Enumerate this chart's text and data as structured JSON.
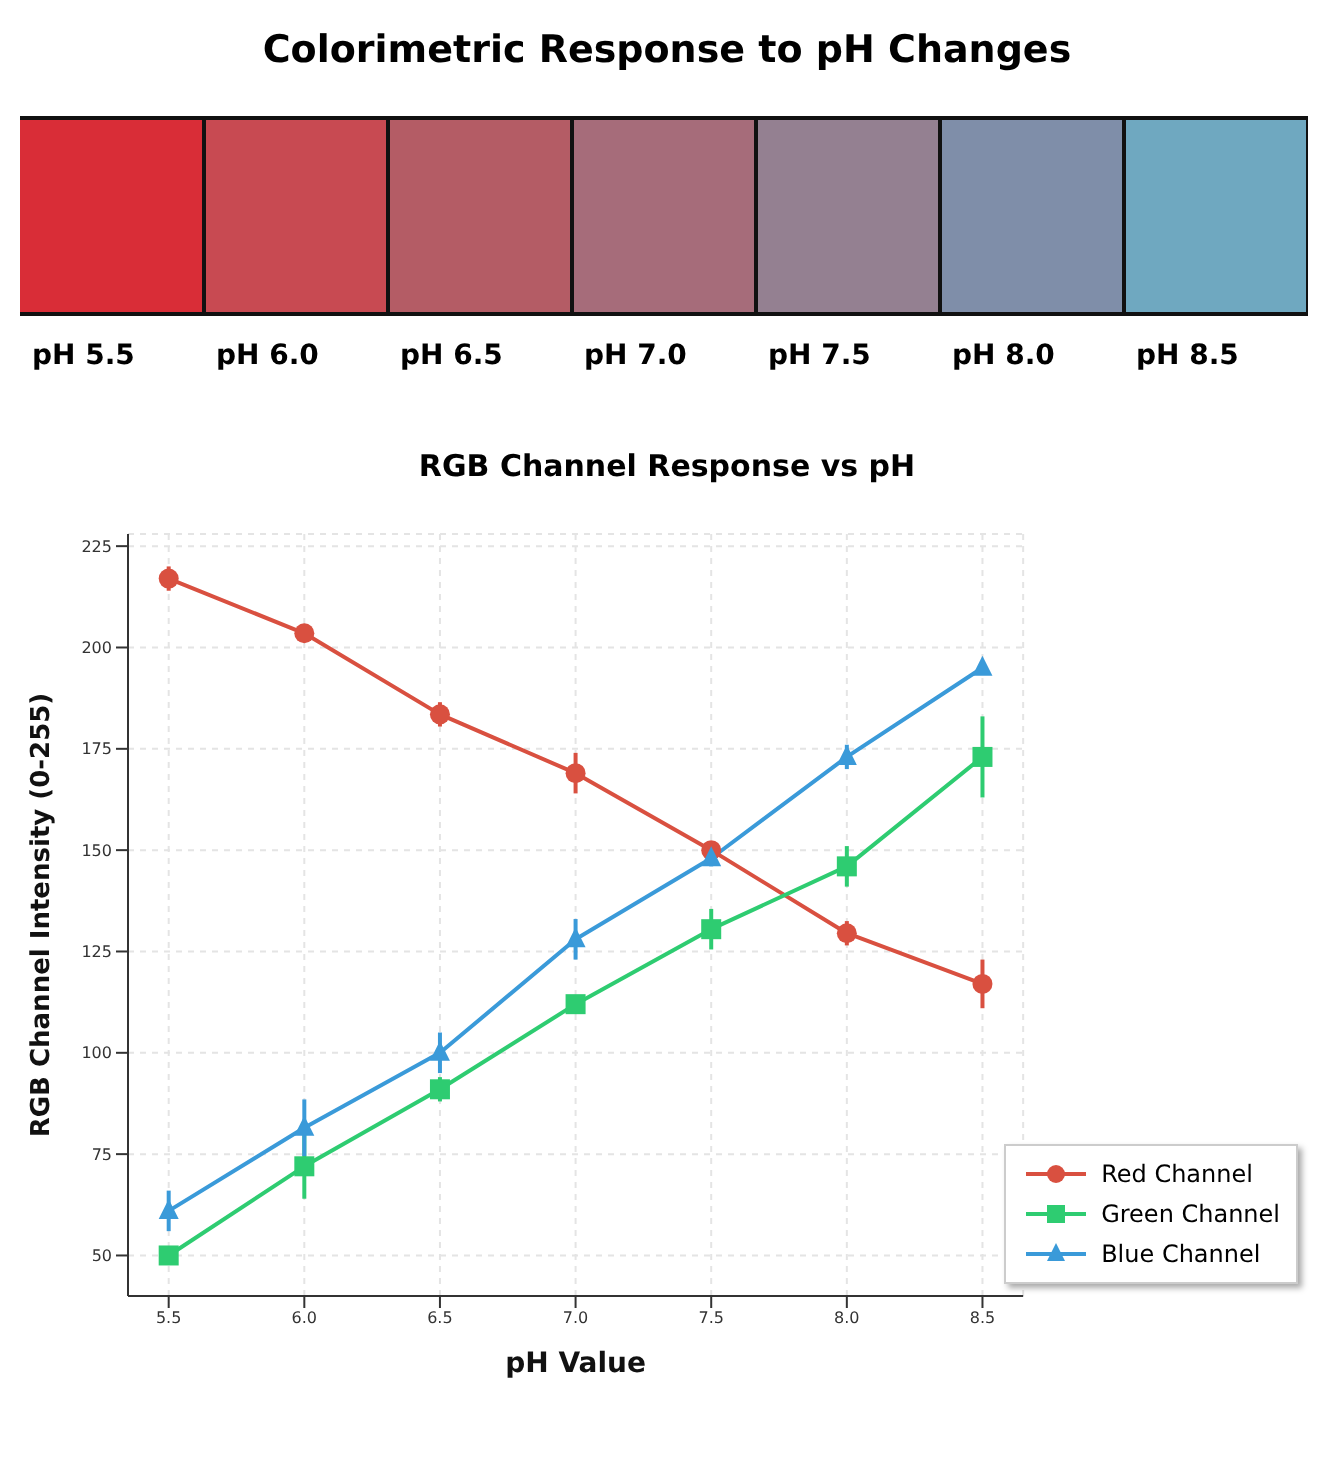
{
  "chart_data": [
    {
      "type": "other",
      "title": "Colorimetric Response to pH Changes",
      "categories": [
        "pH 5.5",
        "pH 6.0",
        "pH 6.5",
        "pH 7.0",
        "pH 7.5",
        "pH 8.0",
        "pH 8.5"
      ],
      "colors": [
        "#d92d37",
        "#c84a52",
        "#b45c65",
        "#a66c7a",
        "#948091",
        "#7f8ea9",
        "#6fa8c0"
      ]
    },
    {
      "type": "line",
      "title": "RGB Channel Response vs pH",
      "xlabel": "pH Value",
      "ylabel": "RGB Channel Intensity (0-255)",
      "x": [
        5.5,
        6.0,
        6.5,
        7.0,
        7.5,
        8.0,
        8.5
      ],
      "series": [
        {
          "name": "Red Channel",
          "color": "#d95040",
          "marker": "circle",
          "values": [
            217,
            203.5,
            183.5,
            169,
            150,
            129.5,
            117
          ],
          "errors": [
            3,
            1,
            3,
            5,
            2,
            3,
            6
          ]
        },
        {
          "name": "Green Channel",
          "color": "#2ecc71",
          "marker": "square",
          "values": [
            50,
            72,
            91,
            112,
            130.5,
            146,
            173
          ],
          "errors": [
            1,
            8,
            3,
            1,
            5,
            5,
            10
          ]
        },
        {
          "name": "Blue Channel",
          "color": "#3a9ad9",
          "marker": "triangle",
          "values": [
            61,
            81.5,
            100,
            128,
            148,
            173,
            195
          ],
          "errors": [
            5,
            7,
            5,
            5,
            2,
            3,
            1
          ]
        }
      ],
      "xlim": [
        5.35,
        8.65
      ],
      "xticks": [
        5.5,
        {
          "value": 6,
          "label": "6.0"
        },
        6.5,
        {
          "value": 7,
          "label": "7.0"
        },
        7.5,
        {
          "value": 8,
          "label": "8.0"
        },
        8.5
      ],
      "ylim": [
        40,
        228
      ],
      "yticks": [
        50,
        75,
        100,
        125,
        150,
        175,
        200,
        225
      ],
      "grid": true,
      "legend": "bottom right"
    }
  ]
}
